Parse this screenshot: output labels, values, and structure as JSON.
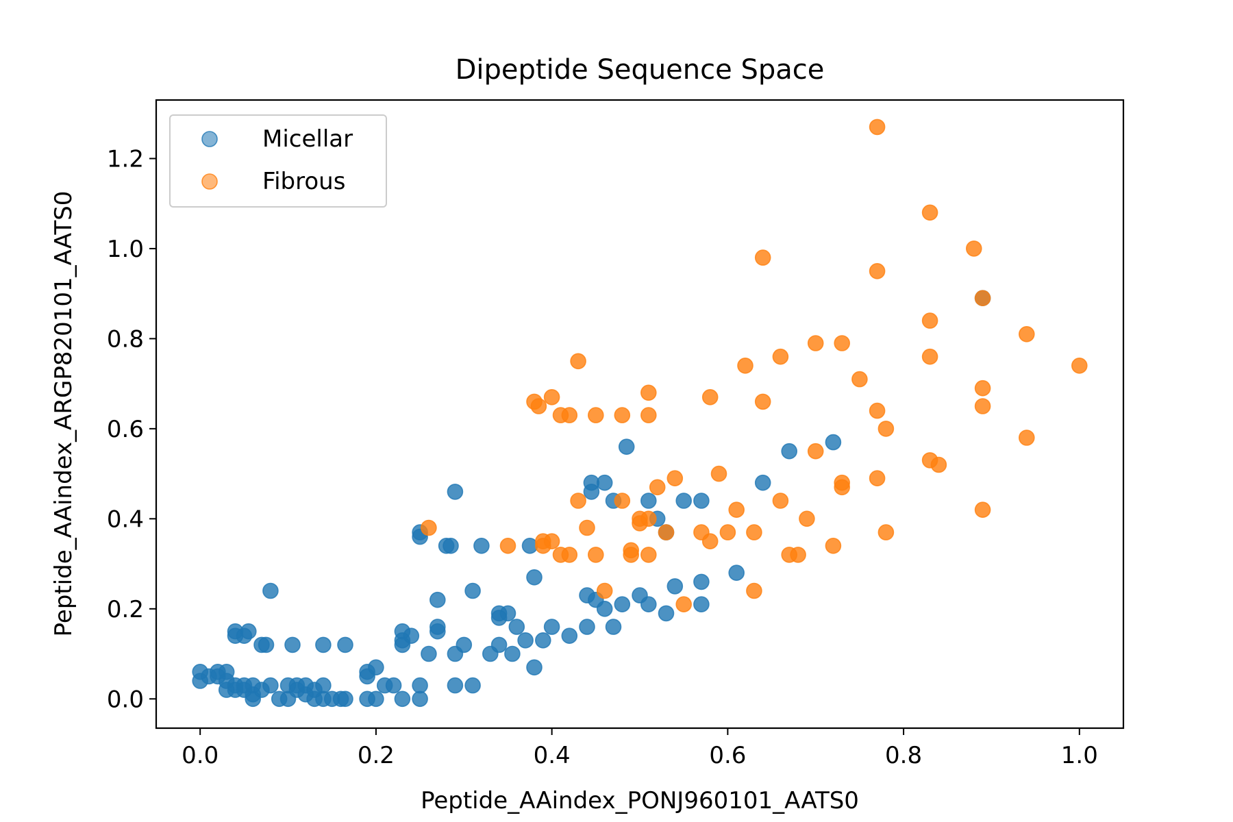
{
  "chart_data": {
    "type": "scatter",
    "title": "Dipeptide Sequence Space",
    "xlabel": "Peptide_AAindex_PONJ960101_AATS0",
    "ylabel": "Peptide_AAindex_ARGP820101_AATS0",
    "xlim": [
      -0.05,
      1.05
    ],
    "ylim": [
      -0.065,
      1.33
    ],
    "xticks": [
      "0.0",
      "0.2",
      "0.4",
      "0.6",
      "0.8",
      "1.0"
    ],
    "yticks": [
      "0.0",
      "0.2",
      "0.4",
      "0.6",
      "0.8",
      "1.0",
      "1.2"
    ],
    "grid": false,
    "legend_position": "top-left",
    "series": [
      {
        "name": "Micellar",
        "color": "#1f77b4",
        "points": [
          [
            0.0,
            0.06
          ],
          [
            0.0,
            0.04
          ],
          [
            0.01,
            0.05
          ],
          [
            0.02,
            0.05
          ],
          [
            0.02,
            0.06
          ],
          [
            0.03,
            0.06
          ],
          [
            0.03,
            0.02
          ],
          [
            0.03,
            0.04
          ],
          [
            0.04,
            0.03
          ],
          [
            0.04,
            0.02
          ],
          [
            0.04,
            0.15
          ],
          [
            0.04,
            0.14
          ],
          [
            0.05,
            0.03
          ],
          [
            0.05,
            0.02
          ],
          [
            0.05,
            0.14
          ],
          [
            0.055,
            0.15
          ],
          [
            0.06,
            0.0
          ],
          [
            0.06,
            0.01
          ],
          [
            0.06,
            0.03
          ],
          [
            0.07,
            0.02
          ],
          [
            0.07,
            0.12
          ],
          [
            0.075,
            0.12
          ],
          [
            0.08,
            0.03
          ],
          [
            0.08,
            0.24
          ],
          [
            0.09,
            0.0
          ],
          [
            0.1,
            0.0
          ],
          [
            0.1,
            0.03
          ],
          [
            0.105,
            0.12
          ],
          [
            0.11,
            0.02
          ],
          [
            0.11,
            0.03
          ],
          [
            0.12,
            0.01
          ],
          [
            0.12,
            0.03
          ],
          [
            0.13,
            0.0
          ],
          [
            0.13,
            0.02
          ],
          [
            0.14,
            0.0
          ],
          [
            0.14,
            0.03
          ],
          [
            0.14,
            0.12
          ],
          [
            0.15,
            0.0
          ],
          [
            0.16,
            0.0
          ],
          [
            0.165,
            0.0
          ],
          [
            0.165,
            0.12
          ],
          [
            0.19,
            0.06
          ],
          [
            0.19,
            0.05
          ],
          [
            0.19,
            0.0
          ],
          [
            0.2,
            0.0
          ],
          [
            0.2,
            0.07
          ],
          [
            0.21,
            0.03
          ],
          [
            0.22,
            0.03
          ],
          [
            0.23,
            0.0
          ],
          [
            0.23,
            0.15
          ],
          [
            0.23,
            0.13
          ],
          [
            0.23,
            0.12
          ],
          [
            0.24,
            0.14
          ],
          [
            0.25,
            0.0
          ],
          [
            0.25,
            0.03
          ],
          [
            0.25,
            0.37
          ],
          [
            0.25,
            0.36
          ],
          [
            0.26,
            0.1
          ],
          [
            0.27,
            0.22
          ],
          [
            0.27,
            0.15
          ],
          [
            0.27,
            0.16
          ],
          [
            0.28,
            0.34
          ],
          [
            0.285,
            0.34
          ],
          [
            0.29,
            0.03
          ],
          [
            0.29,
            0.1
          ],
          [
            0.29,
            0.46
          ],
          [
            0.3,
            0.12
          ],
          [
            0.31,
            0.24
          ],
          [
            0.31,
            0.03
          ],
          [
            0.32,
            0.34
          ],
          [
            0.33,
            0.1
          ],
          [
            0.34,
            0.19
          ],
          [
            0.34,
            0.18
          ],
          [
            0.34,
            0.12
          ],
          [
            0.35,
            0.19
          ],
          [
            0.355,
            0.1
          ],
          [
            0.36,
            0.16
          ],
          [
            0.37,
            0.13
          ],
          [
            0.375,
            0.34
          ],
          [
            0.38,
            0.27
          ],
          [
            0.38,
            0.07
          ],
          [
            0.39,
            0.13
          ],
          [
            0.4,
            0.16
          ],
          [
            0.42,
            0.14
          ],
          [
            0.44,
            0.16
          ],
          [
            0.44,
            0.23
          ],
          [
            0.445,
            0.48
          ],
          [
            0.445,
            0.46
          ],
          [
            0.45,
            0.22
          ],
          [
            0.46,
            0.48
          ],
          [
            0.46,
            0.2
          ],
          [
            0.47,
            0.16
          ],
          [
            0.47,
            0.44
          ],
          [
            0.48,
            0.21
          ],
          [
            0.485,
            0.56
          ],
          [
            0.5,
            0.23
          ],
          [
            0.51,
            0.44
          ],
          [
            0.51,
            0.21
          ],
          [
            0.52,
            0.4
          ],
          [
            0.53,
            0.37
          ],
          [
            0.53,
            0.19
          ],
          [
            0.54,
            0.25
          ],
          [
            0.55,
            0.44
          ],
          [
            0.57,
            0.44
          ],
          [
            0.57,
            0.26
          ],
          [
            0.57,
            0.21
          ],
          [
            0.61,
            0.28
          ],
          [
            0.64,
            0.48
          ],
          [
            0.67,
            0.55
          ],
          [
            0.72,
            0.57
          ],
          [
            0.89,
            0.89
          ]
        ]
      },
      {
        "name": "Fibrous",
        "color": "#ff7f0e",
        "points": [
          [
            0.26,
            0.38
          ],
          [
            0.35,
            0.34
          ],
          [
            0.38,
            0.66
          ],
          [
            0.385,
            0.65
          ],
          [
            0.39,
            0.35
          ],
          [
            0.39,
            0.34
          ],
          [
            0.4,
            0.67
          ],
          [
            0.4,
            0.35
          ],
          [
            0.41,
            0.63
          ],
          [
            0.41,
            0.32
          ],
          [
            0.42,
            0.63
          ],
          [
            0.42,
            0.32
          ],
          [
            0.43,
            0.75
          ],
          [
            0.43,
            0.44
          ],
          [
            0.44,
            0.38
          ],
          [
            0.45,
            0.63
          ],
          [
            0.45,
            0.32
          ],
          [
            0.46,
            0.24
          ],
          [
            0.48,
            0.44
          ],
          [
            0.48,
            0.63
          ],
          [
            0.49,
            0.33
          ],
          [
            0.49,
            0.32
          ],
          [
            0.5,
            0.4
          ],
          [
            0.5,
            0.39
          ],
          [
            0.51,
            0.68
          ],
          [
            0.51,
            0.63
          ],
          [
            0.51,
            0.4
          ],
          [
            0.51,
            0.32
          ],
          [
            0.52,
            0.47
          ],
          [
            0.53,
            0.37
          ],
          [
            0.54,
            0.49
          ],
          [
            0.55,
            0.21
          ],
          [
            0.57,
            0.37
          ],
          [
            0.58,
            0.67
          ],
          [
            0.58,
            0.35
          ],
          [
            0.59,
            0.5
          ],
          [
            0.6,
            0.37
          ],
          [
            0.61,
            0.42
          ],
          [
            0.62,
            0.74
          ],
          [
            0.63,
            0.37
          ],
          [
            0.63,
            0.24
          ],
          [
            0.64,
            0.98
          ],
          [
            0.64,
            0.66
          ],
          [
            0.66,
            0.76
          ],
          [
            0.66,
            0.44
          ],
          [
            0.67,
            0.32
          ],
          [
            0.68,
            0.32
          ],
          [
            0.69,
            0.4
          ],
          [
            0.7,
            0.79
          ],
          [
            0.7,
            0.55
          ],
          [
            0.72,
            0.34
          ],
          [
            0.73,
            0.79
          ],
          [
            0.73,
            0.48
          ],
          [
            0.73,
            0.47
          ],
          [
            0.75,
            0.71
          ],
          [
            0.77,
            1.27
          ],
          [
            0.77,
            0.95
          ],
          [
            0.77,
            0.64
          ],
          [
            0.77,
            0.49
          ],
          [
            0.78,
            0.6
          ],
          [
            0.78,
            0.37
          ],
          [
            0.83,
            1.08
          ],
          [
            0.83,
            0.84
          ],
          [
            0.83,
            0.76
          ],
          [
            0.83,
            0.53
          ],
          [
            0.84,
            0.52
          ],
          [
            0.88,
            1.0
          ],
          [
            0.89,
            0.89
          ],
          [
            0.89,
            0.69
          ],
          [
            0.89,
            0.65
          ],
          [
            0.89,
            0.42
          ],
          [
            0.94,
            0.81
          ],
          [
            0.94,
            0.58
          ],
          [
            1.0,
            0.74
          ]
        ]
      }
    ]
  }
}
